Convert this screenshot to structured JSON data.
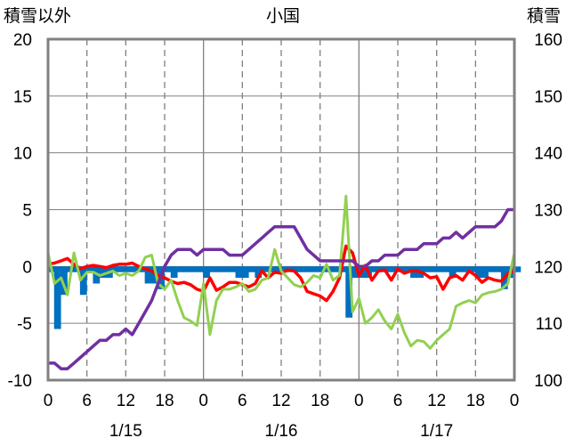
{
  "chart_data": {
    "type": "line",
    "title": "小国",
    "y_left_label": "積雪以外",
    "y_right_label": "積雪",
    "y_left_range": [
      -10,
      20
    ],
    "y_left_ticks": [
      "-10",
      "-5",
      "0",
      "5",
      "10",
      "15",
      "20"
    ],
    "y_right_range": [
      100,
      160
    ],
    "y_right_ticks": [
      "100",
      "110",
      "120",
      "130",
      "140",
      "150",
      "160"
    ],
    "x_hour_labels": [
      "0",
      "6",
      "12",
      "18",
      "0",
      "6",
      "12",
      "18",
      "0",
      "6",
      "12",
      "18",
      "0"
    ],
    "date_labels": [
      "1/15",
      "1/16",
      "1/17"
    ],
    "grid": true,
    "colors": {
      "red_line": "#ff0000",
      "purple_line": "#7030a0",
      "green_line": "#92d050",
      "bars": "#0070c0",
      "grid": "#808080",
      "frame": "#808080"
    },
    "series": [
      {
        "color_key": "red_line",
        "axis": "left",
        "x": [
          0,
          1,
          2,
          3,
          4,
          5,
          6,
          7,
          8,
          9,
          10,
          11,
          12,
          13,
          14,
          15,
          16,
          17,
          18,
          19,
          20,
          21,
          22,
          23,
          24,
          25,
          26,
          27,
          28,
          29,
          30,
          31,
          32,
          33,
          34,
          35,
          36,
          37,
          38,
          39,
          40,
          41,
          42,
          43,
          44,
          45,
          46,
          47,
          48,
          49,
          50,
          51,
          52,
          53,
          54,
          55,
          56,
          57,
          58,
          59,
          60,
          61,
          62,
          63,
          64,
          65,
          66,
          67,
          68,
          69,
          70,
          71,
          72
        ],
        "values": [
          0.2,
          0.3,
          0.5,
          0.7,
          0.2,
          -0.2,
          0.0,
          0.1,
          0.0,
          -0.1,
          0.1,
          0.2,
          0.2,
          0.3,
          0.0,
          -0.2,
          -0.4,
          -0.8,
          -1.0,
          -1.3,
          -1.5,
          -1.4,
          -1.6,
          -2.0,
          -2.2,
          -1.0,
          -2.1,
          -1.8,
          -1.4,
          -1.4,
          -1.6,
          -1.8,
          -1.5,
          -0.4,
          -1.0,
          -0.5,
          -0.6,
          -0.3,
          -0.4,
          -1.0,
          -2.2,
          -2.4,
          -2.6,
          -3.0,
          -2.2,
          -1.0,
          1.8,
          1.2,
          -0.8,
          0.1,
          -1.2,
          -0.4,
          -0.3,
          -1.2,
          -0.2,
          -0.6,
          -0.4,
          -0.4,
          -0.6,
          -1.0,
          -0.9,
          -2.0,
          -1.0,
          -0.8,
          -1.2,
          -0.4,
          -0.8,
          -1.4,
          -1.0,
          -1.2,
          -1.3,
          -0.6,
          -0.4
        ]
      },
      {
        "color_key": "purple_line",
        "axis": "right",
        "x": [
          0,
          1,
          2,
          3,
          4,
          5,
          6,
          7,
          8,
          9,
          10,
          11,
          12,
          13,
          14,
          15,
          16,
          17,
          18,
          19,
          20,
          21,
          22,
          23,
          24,
          25,
          26,
          27,
          28,
          29,
          30,
          31,
          32,
          33,
          34,
          35,
          36,
          37,
          38,
          39,
          40,
          41,
          42,
          43,
          44,
          45,
          46,
          47,
          48,
          49,
          50,
          51,
          52,
          53,
          54,
          55,
          56,
          57,
          58,
          59,
          60,
          61,
          62,
          63,
          64,
          65,
          66,
          67,
          68,
          69,
          70,
          71,
          72
        ],
        "values": [
          103,
          103,
          102,
          102,
          103,
          104,
          105,
          106,
          107,
          107,
          108,
          108,
          109,
          108,
          110,
          112,
          114,
          117,
          120,
          122,
          123,
          123,
          123,
          122,
          123,
          123,
          123,
          123,
          122,
          122,
          122,
          123,
          124,
          125,
          126,
          127,
          127,
          127,
          127,
          125,
          123,
          122,
          121,
          121,
          121,
          121,
          121,
          121,
          120,
          120,
          121,
          121,
          122,
          122,
          122,
          123,
          123,
          123,
          124,
          124,
          124,
          125,
          125,
          126,
          125,
          126,
          127,
          127,
          127,
          127,
          128,
          130,
          130
        ]
      },
      {
        "color_key": "green_line",
        "axis": "left",
        "x": [
          0,
          1,
          2,
          3,
          4,
          5,
          6,
          7,
          8,
          9,
          10,
          11,
          12,
          13,
          14,
          15,
          16,
          17,
          18,
          19,
          20,
          21,
          22,
          23,
          24,
          25,
          26,
          27,
          28,
          29,
          30,
          31,
          32,
          33,
          34,
          35,
          36,
          37,
          38,
          39,
          40,
          41,
          42,
          43,
          44,
          45,
          46,
          47,
          48,
          49,
          50,
          51,
          52,
          53,
          54,
          55,
          56,
          57,
          58,
          59,
          60,
          61,
          62,
          63,
          64,
          65,
          66,
          67,
          68,
          69,
          70,
          71,
          72
        ],
        "values": [
          1.2,
          -1.5,
          -1.0,
          -2.5,
          1.2,
          -1.2,
          -0.5,
          -0.5,
          -0.8,
          -0.6,
          -0.4,
          -0.8,
          -0.6,
          -0.8,
          -0.4,
          0.8,
          1.0,
          -1.5,
          -2.0,
          -1.2,
          -3.0,
          -4.5,
          -4.8,
          -5.2,
          -1.5,
          -6.0,
          -3.0,
          -2.0,
          -2.0,
          -1.8,
          -1.5,
          -2.2,
          -2.0,
          -1.2,
          -1.0,
          1.5,
          -0.4,
          -1.0,
          -1.6,
          -1.8,
          -1.4,
          -0.8,
          -1.0,
          0.2,
          -1.2,
          -0.8,
          6.2,
          -4.0,
          -2.8,
          -5.0,
          -4.5,
          -3.8,
          -4.8,
          -5.5,
          -4.2,
          -5.8,
          -7.0,
          -6.5,
          -6.6,
          -7.2,
          -6.5,
          -6.0,
          -5.5,
          -3.5,
          -3.2,
          -3.0,
          -3.2,
          -2.5,
          -2.3,
          -2.2,
          -2.0,
          -1.5,
          1.2
        ]
      },
      {
        "color_key": "bars",
        "axis": "left",
        "type": "bar",
        "x": [
          0,
          1,
          2,
          3,
          4,
          5,
          6,
          7,
          8,
          9,
          10,
          11,
          12,
          13,
          14,
          15,
          16,
          17,
          18,
          19,
          20,
          21,
          22,
          23,
          24,
          25,
          26,
          27,
          28,
          29,
          30,
          31,
          32,
          33,
          34,
          35,
          36,
          37,
          38,
          39,
          40,
          41,
          42,
          43,
          44,
          45,
          46,
          47,
          48,
          49,
          50,
          51,
          52,
          53,
          54,
          55,
          56,
          57,
          58,
          59,
          60,
          61,
          62,
          63,
          64,
          65,
          66,
          67,
          68,
          69,
          70,
          71,
          72
        ],
        "values": [
          -0.5,
          -5.5,
          -2.5,
          -0.5,
          -0.5,
          -2.5,
          -0.5,
          -1.5,
          -1.0,
          -1.0,
          -0.5,
          -0.5,
          -0.5,
          -0.5,
          -0.5,
          -1.5,
          -1.5,
          -2.0,
          -0.5,
          -1.0,
          -0.5,
          -0.5,
          -0.5,
          -0.5,
          -1.0,
          -0.5,
          -0.5,
          -0.5,
          -0.5,
          -1.0,
          -1.0,
          -0.5,
          -1.0,
          -0.5,
          -0.5,
          -0.5,
          -0.5,
          -0.5,
          -0.5,
          -0.5,
          -0.5,
          -0.5,
          -0.5,
          -0.5,
          -0.5,
          -0.5,
          -4.5,
          -1.0,
          -1.0,
          -1.0,
          -0.5,
          -0.5,
          -0.5,
          -0.5,
          -0.5,
          -0.5,
          -1.0,
          -1.0,
          -0.5,
          -0.5,
          -0.5,
          -0.5,
          -1.0,
          -0.5,
          -0.5,
          -0.5,
          -1.0,
          -1.0,
          -0.5,
          -0.5,
          -2.0,
          -1.0,
          -0.5
        ]
      }
    ]
  }
}
